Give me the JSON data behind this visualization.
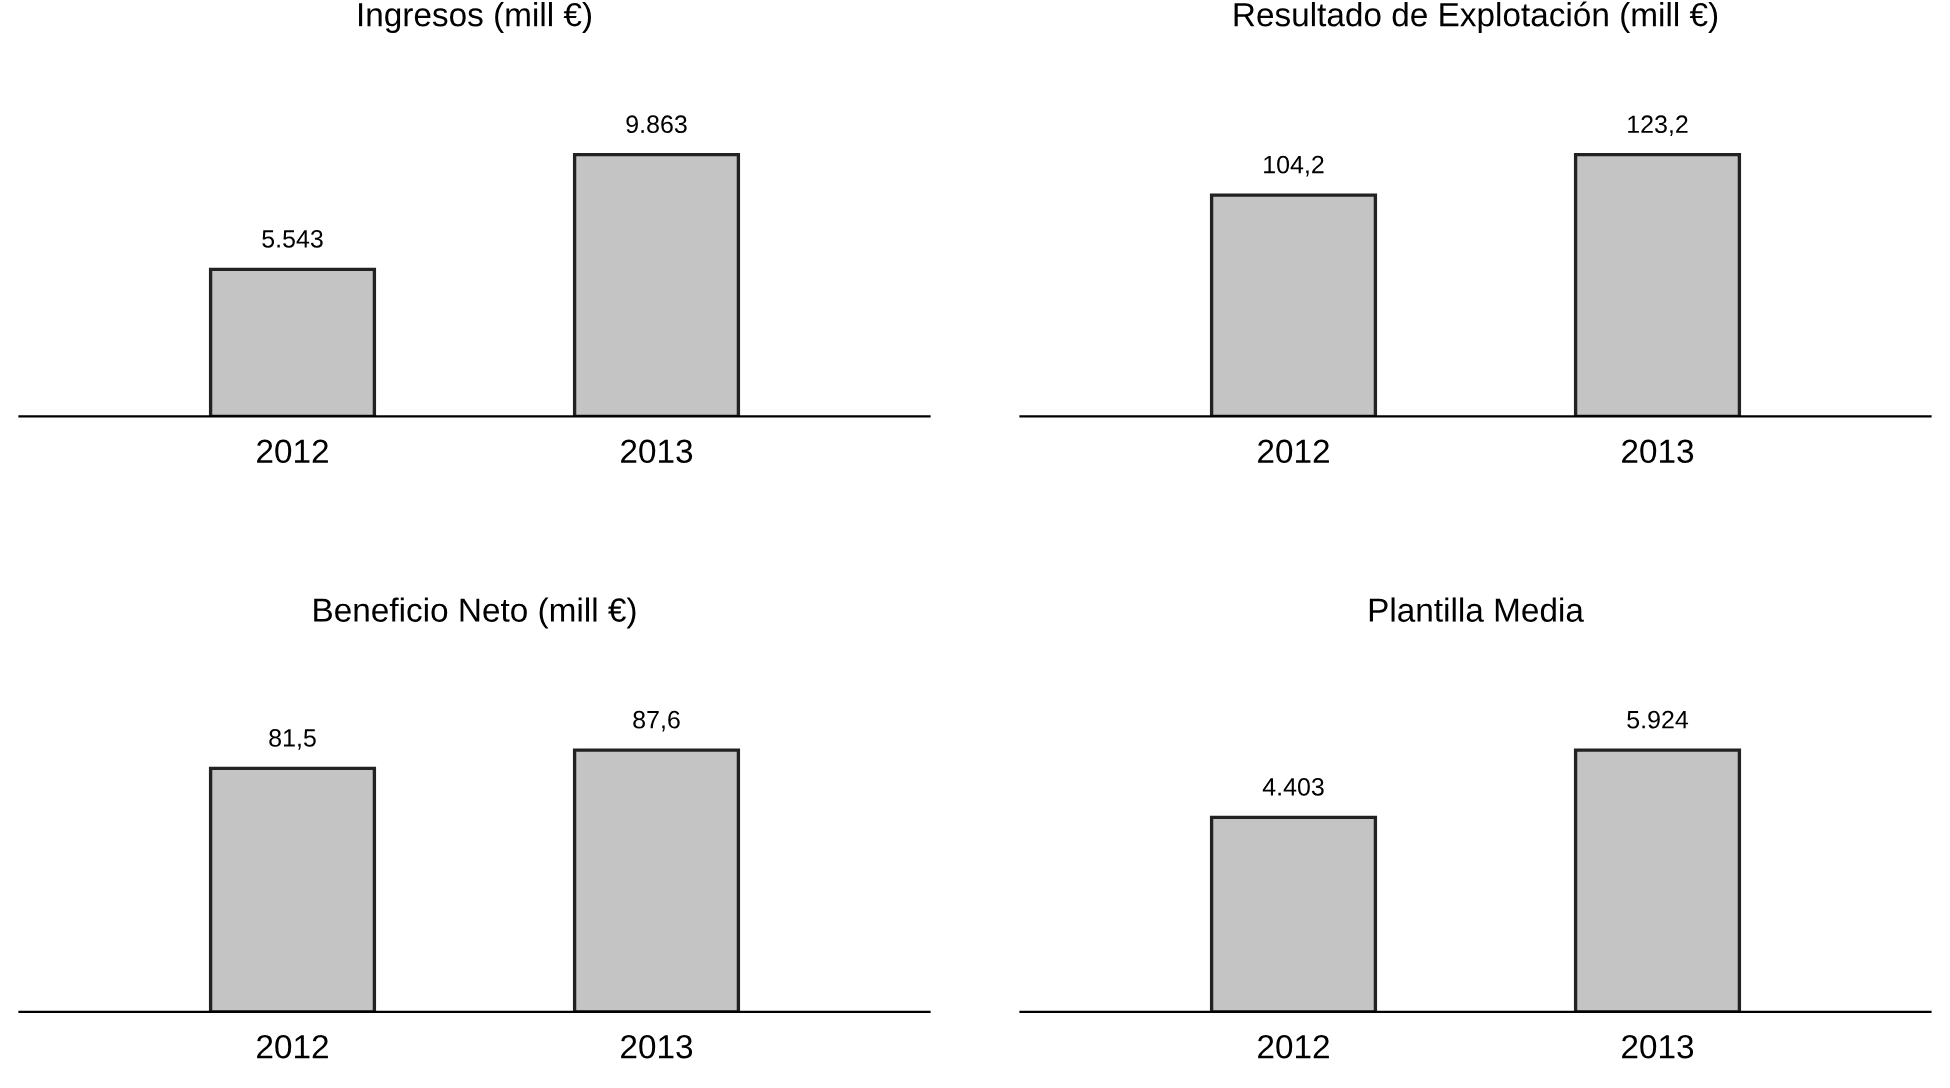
{
  "chart_data": [
    {
      "type": "bar",
      "title": "Ingresos (mill €)",
      "categories": [
        "2012",
        "2013"
      ],
      "values": [
        5543,
        9863
      ],
      "value_labels": [
        "5.543",
        "9.863"
      ],
      "color": "#c4c4c4",
      "tick_labels": "x"
    },
    {
      "type": "bar",
      "title": "Resultado de Explotación (mill €)",
      "categories": [
        "2012",
        "2013"
      ],
      "values": [
        104.2,
        123.2
      ],
      "value_labels": [
        "104,2",
        "123,2"
      ],
      "color": "#c4c4c4",
      "tick_labels": "x"
    },
    {
      "type": "bar",
      "title": "Beneficio Neto (mill €)",
      "categories": [
        "2012",
        "2013"
      ],
      "values": [
        81.5,
        87.6
      ],
      "value_labels": [
        "81,5",
        "87,6"
      ],
      "color": "#c4c4c4",
      "tick_labels": "x"
    },
    {
      "type": "bar",
      "title": "Plantilla Media",
      "categories": [
        "2012",
        "2013"
      ],
      "values": [
        4403,
        5924
      ],
      "value_labels": [
        "4.403",
        "5.924"
      ],
      "color": "#c4c4c4",
      "tick_labels": "x"
    }
  ]
}
